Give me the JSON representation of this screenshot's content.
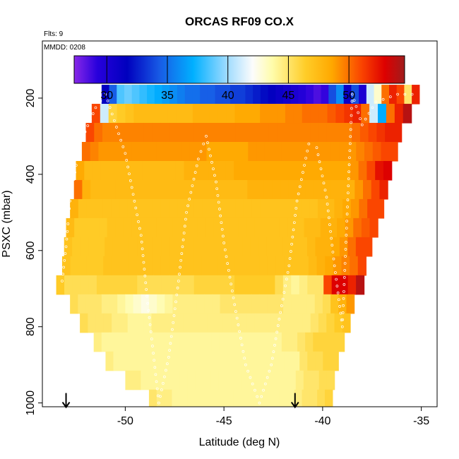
{
  "chart_data": {
    "type": "heatmap",
    "title": "ORCAS RF09 CO.X",
    "flights_label": "Flts: 9",
    "date_label": "MMDD: 0208",
    "xlabel": "Latitude (deg N)",
    "ylabel": "PSXC (mbar)",
    "xlim": [
      -54.2,
      -34.2
    ],
    "ylim": [
      1010,
      50
    ],
    "x_ticks": [
      -50,
      -45,
      -40,
      -35
    ],
    "x_tick_labels": [
      "-50",
      "-45",
      "-40",
      "-35"
    ],
    "y_ticks": [
      200,
      400,
      600,
      800,
      1000
    ],
    "y_tick_labels": [
      "200",
      "400",
      "600",
      "800",
      "1000"
    ],
    "colorbar": {
      "ticks": [
        30,
        35,
        40,
        45,
        50
      ],
      "tick_labels": [
        "30",
        "35",
        "40",
        "45",
        "50"
      ],
      "min": 27.3,
      "max": 54.6
    },
    "pressure_bands": [
      {
        "p": 190,
        "lat_start": -51.2,
        "lat_end": -35.1,
        "values": [
          31.5,
          34.5,
          38.5,
          39,
          38.5,
          38,
          37.5,
          37,
          36.5,
          36,
          35.5,
          35,
          35,
          34.5,
          34.5,
          34,
          34,
          33.5,
          33.5,
          33,
          32.5,
          32,
          31.5,
          31,
          30.5,
          30,
          29.5,
          29,
          28.5,
          29,
          34,
          36,
          31,
          34,
          30,
          41,
          43,
          50,
          52,
          51,
          45,
          52
        ]
      },
      {
        "p": 240,
        "lat_start": -51.7,
        "lat_end": -35.5,
        "values": [
          51,
          41,
          46,
          46.5,
          47,
          47.5,
          47.5,
          47.5,
          47.5,
          47.5,
          47.5,
          47.5,
          48,
          48,
          48,
          48,
          48,
          48.5,
          48.5,
          48.5,
          49,
          49,
          49,
          49.5,
          49.5,
          50,
          50,
          50,
          50.5,
          51,
          51.5,
          52,
          50,
          41,
          37,
          50,
          52,
          54
        ]
      },
      {
        "p": 290,
        "lat_start": -52.0,
        "lat_end": -36.0,
        "values": [
          51,
          50,
          49.5,
          49.5,
          49.5,
          49.5,
          49.5,
          49.5,
          49.5,
          49.5,
          49.5,
          49.5,
          49.5,
          49.5,
          49.5,
          49.5,
          49.5,
          49.5,
          49.5,
          49.5,
          49.5,
          49.5,
          49.5,
          49.5,
          49.5,
          49.5,
          49.5,
          49.5,
          49.5,
          49.5,
          49.5,
          49.5,
          50,
          50.5,
          51,
          51.5,
          52,
          52
        ]
      },
      {
        "p": 340,
        "lat_start": -52.2,
        "lat_end": -36.2,
        "values": [
          50,
          49.5,
          49,
          49,
          49,
          49,
          49,
          49,
          49,
          49,
          49,
          49,
          49,
          49,
          49,
          48.5,
          48.5,
          48.5,
          48.5,
          48.5,
          49,
          49,
          49,
          49,
          49,
          49,
          49,
          49,
          49,
          49,
          49,
          49,
          49,
          49.5,
          50,
          50.5,
          51,
          51
        ]
      },
      {
        "p": 390,
        "lat_start": -52.5,
        "lat_end": -36.5,
        "values": [
          48.5,
          47.5,
          47.5,
          47.5,
          47.5,
          47.5,
          47.5,
          47.5,
          47.5,
          47.5,
          47.5,
          47.5,
          47.5,
          48,
          48,
          48,
          48,
          48,
          48,
          48.5,
          48.5,
          48.5,
          48.5,
          48.5,
          48.5,
          48.5,
          48.5,
          48.5,
          48.5,
          48.5,
          48.5,
          48.5,
          48.5,
          49,
          50,
          51,
          52.5,
          53
        ]
      },
      {
        "p": 440,
        "lat_start": -52.6,
        "lat_end": -36.7,
        "values": [
          50,
          48,
          47.5,
          47.5,
          47.5,
          47.5,
          47.5,
          47.5,
          47.5,
          47.5,
          47.5,
          47.5,
          47.5,
          47.5,
          47.5,
          47.5,
          47.5,
          47.5,
          47.5,
          47.5,
          47.5,
          48,
          48,
          48,
          48,
          48,
          48,
          48,
          48,
          48,
          48,
          48,
          48,
          48,
          49,
          50,
          51,
          52
        ]
      },
      {
        "p": 490,
        "lat_start": -52.8,
        "lat_end": -36.9,
        "values": [
          48,
          47,
          47,
          47,
          47,
          47,
          47,
          47,
          47,
          47,
          47,
          47,
          47,
          47,
          47,
          47,
          47,
          47,
          47,
          47,
          47,
          47,
          47,
          47,
          47,
          47,
          47,
          47,
          47,
          47,
          47.5,
          47.5,
          48,
          48.5,
          49,
          50,
          51,
          51
        ]
      },
      {
        "p": 540,
        "lat_start": -53.0,
        "lat_end": -37.2,
        "values": [
          47.5,
          46.5,
          46.5,
          46.5,
          46.5,
          47,
          47,
          47,
          47,
          47,
          47,
          47,
          47,
          47,
          47,
          47,
          47,
          47,
          47,
          47,
          47,
          47,
          47,
          47,
          47,
          47,
          47,
          47,
          47,
          47.5,
          47.5,
          48,
          48,
          48.5,
          49,
          50,
          50.5,
          51
        ]
      },
      {
        "p": 590,
        "lat_start": -53.1,
        "lat_end": -37.5,
        "values": [
          47,
          46.5,
          46.5,
          46.5,
          46.5,
          47,
          47,
          47,
          47,
          47,
          47,
          47,
          47,
          47,
          47,
          47,
          47,
          47,
          47,
          47,
          47,
          47,
          47,
          47,
          47,
          47,
          47,
          47,
          47,
          47,
          47.5,
          48,
          48,
          48.5,
          49,
          50,
          51,
          51
        ]
      },
      {
        "p": 640,
        "lat_start": -53.2,
        "lat_end": -37.8,
        "values": [
          47,
          46.5,
          46.5,
          46.5,
          46.5,
          47,
          47,
          47,
          47,
          47,
          47,
          47,
          47,
          47,
          47,
          47,
          47,
          47,
          47,
          47,
          47,
          47,
          47,
          47,
          47,
          47,
          47,
          47,
          47,
          47,
          47.5,
          48,
          48.5,
          49,
          49.5,
          50,
          51
        ]
      },
      {
        "p": 690,
        "lat_start": -53.5,
        "lat_end": -37.9,
        "values": [
          46.5,
          45.5,
          45.5,
          45.5,
          45.5,
          46,
          46,
          46,
          46,
          46,
          45.5,
          45.5,
          45.5,
          45.5,
          45.5,
          45.5,
          45.5,
          46,
          46,
          46,
          46,
          46,
          46.5,
          46.5,
          46.5,
          46.5,
          46.5,
          45.5,
          44.5,
          44,
          44.5,
          45,
          45,
          51,
          53,
          53,
          52,
          54
        ]
      },
      {
        "p": 740,
        "lat_start": -52.8,
        "lat_end": -38.4,
        "values": [
          45.5,
          45,
          45,
          45,
          44.5,
          44.5,
          44,
          43.5,
          43,
          42.5,
          43,
          43.5,
          44,
          44.5,
          44.5,
          44.5,
          44.5,
          44.5,
          44.5,
          45,
          45,
          45,
          45,
          45,
          45,
          45,
          45,
          44.5,
          44.5,
          44.5,
          44.5,
          45,
          45.5,
          47,
          48,
          49
        ]
      },
      {
        "p": 790,
        "lat_start": -52.3,
        "lat_end": -38.6,
        "values": [
          45.5,
          45,
          45,
          45,
          44.5,
          44.5,
          44,
          44,
          44,
          44.5,
          44.5,
          44.5,
          44.5,
          44.5,
          44.5,
          44.5,
          44.5,
          44.5,
          44.5,
          44.5,
          44.5,
          44.5,
          44.5,
          44.5,
          44.5,
          44.5,
          44.5,
          44.5,
          44.5,
          45,
          45.5,
          46,
          46.5,
          47
        ]
      },
      {
        "p": 840,
        "lat_start": -51.6,
        "lat_end": -38.9,
        "values": [
          44.5,
          44,
          44,
          44,
          44,
          44,
          44,
          44,
          44,
          44,
          44,
          44,
          44,
          44,
          44,
          44,
          44,
          44,
          44,
          44,
          44,
          44,
          44,
          44,
          44.5,
          44.5,
          45,
          45.5,
          46,
          46,
          46,
          46
        ]
      },
      {
        "p": 890,
        "lat_start": -51.0,
        "lat_end": -39.2,
        "values": [
          44.5,
          44,
          44,
          44,
          44,
          44,
          44,
          44,
          44,
          44,
          44,
          44,
          44,
          44,
          44,
          44,
          44,
          44,
          44,
          44,
          44,
          44,
          44,
          44,
          44,
          45,
          45.5,
          45.5,
          46,
          46
        ]
      },
      {
        "p": 940,
        "lat_start": -50.0,
        "lat_end": -39.4,
        "values": [
          44.5,
          44.5,
          44,
          44,
          44,
          44,
          44,
          44,
          44,
          44,
          44,
          44,
          44,
          44,
          44,
          44,
          44,
          44,
          44,
          44,
          44,
          44,
          44.5,
          45,
          45,
          45.5,
          45.5
        ]
      },
      {
        "p": 990,
        "lat_start": -48.8,
        "lat_end": -39.5,
        "values": [
          45,
          44.5,
          44.5,
          44,
          44,
          44,
          44,
          44,
          44,
          44,
          44,
          44,
          44,
          44,
          44,
          44,
          44,
          44,
          44,
          44.5,
          45,
          45,
          45.5,
          46
        ]
      }
    ],
    "flight_track": [
      [
        -53.2,
        680
      ],
      [
        -53.0,
        590
      ],
      [
        -52.8,
        470
      ],
      [
        -52.3,
        320
      ],
      [
        -51.5,
        225
      ],
      [
        -51.0,
        190
      ],
      [
        -50.0,
        345
      ],
      [
        -49.2,
        560
      ],
      [
        -48.9,
        720
      ],
      [
        -48.3,
        1000
      ],
      [
        -47.8,
        880
      ],
      [
        -47.3,
        680
      ],
      [
        -46.9,
        500
      ],
      [
        -46.3,
        360
      ],
      [
        -45.9,
        300
      ],
      [
        -45.4,
        420
      ],
      [
        -45.0,
        580
      ],
      [
        -44.4,
        760
      ],
      [
        -43.9,
        900
      ],
      [
        -43.2,
        1000
      ],
      [
        -42.6,
        900
      ],
      [
        -42.2,
        780
      ],
      [
        -41.7,
        640
      ],
      [
        -41.3,
        470
      ],
      [
        -40.7,
        320
      ],
      [
        -40.3,
        330
      ],
      [
        -39.8,
        460
      ],
      [
        -39.4,
        640
      ],
      [
        -39.0,
        800
      ],
      [
        -38.5,
        190
      ],
      [
        -38.0,
        270
      ],
      [
        -37.3,
        210
      ],
      [
        -36.2,
        190
      ],
      [
        -35.1,
        190
      ]
    ],
    "track_markers": [
      {
        "lat": -53.0,
        "p": 1000
      },
      {
        "lat": -41.4,
        "p": 1000
      }
    ]
  }
}
